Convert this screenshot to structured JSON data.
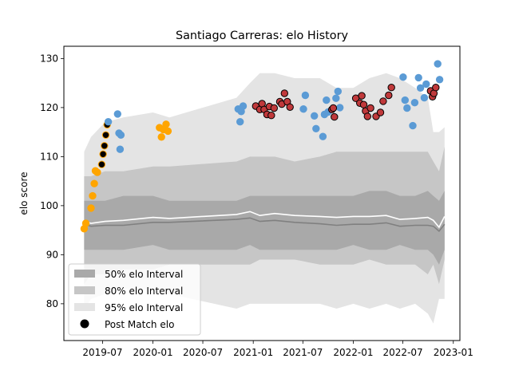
{
  "chart_data": {
    "type": "scatter",
    "title": "Santiago Carreras: elo History",
    "xlabel": "",
    "ylabel": "elo score",
    "xlim": [
      "2019-02-10",
      "2023-01-25"
    ],
    "ylim": [
      72.5,
      132.5
    ],
    "x_ticks": [
      "2019-07-01",
      "2020-01-01",
      "2020-07-01",
      "2021-01-01",
      "2021-07-01",
      "2022-01-01",
      "2022-07-01",
      "2023-01-01"
    ],
    "x_tick_labels": [
      "2019-07",
      "2020-01",
      "2020-07",
      "2021-01",
      "2021-07",
      "2022-01",
      "2022-07",
      "2023-01"
    ],
    "y_ticks": [
      80,
      90,
      100,
      110,
      120,
      130
    ],
    "grid": false,
    "legend": {
      "position": "lower-left",
      "entries": [
        "50% elo Interval",
        "80% elo Interval",
        "95% elo Interval",
        "Post Match elo"
      ]
    },
    "colors": {
      "band50": "#a9a9a9",
      "band80": "#c6c6c6",
      "band95": "#e4e4e4",
      "median": "#808080",
      "mean": "#ffffff",
      "orange": "#ffa500",
      "blue": "#5b9bd5",
      "red": "#c0393b",
      "black": "#000000"
    },
    "bands": {
      "dates": [
        "2019-04-25",
        "2019-05-20",
        "2019-07-10",
        "2019-09-15",
        "2020-01-01",
        "2020-03-01",
        "2020-11-01",
        "2020-12-20",
        "2021-01-25",
        "2021-03-20",
        "2021-06-01",
        "2021-09-01",
        "2021-11-01",
        "2022-01-01",
        "2022-03-01",
        "2022-05-01",
        "2022-06-20",
        "2022-08-15",
        "2022-09-30",
        "2022-10-20",
        "2022-11-10",
        "2022-11-30"
      ],
      "p2_5": [
        79,
        81,
        82,
        83,
        83,
        82,
        79,
        80,
        80,
        80,
        80,
        80,
        79,
        80,
        79,
        80,
        79,
        80,
        78,
        76,
        81,
        81
      ],
      "p10": [
        84,
        86,
        86,
        87,
        87,
        88,
        88,
        88,
        89,
        89,
        89,
        88,
        88,
        88,
        89,
        88,
        88,
        88,
        86,
        88,
        84,
        89
      ],
      "p25": [
        91,
        91,
        91,
        91,
        92,
        91,
        91,
        92,
        91,
        91,
        91,
        91,
        91,
        92,
        91,
        91,
        92,
        91,
        91,
        90,
        88,
        91
      ],
      "p50": [
        96.2,
        95.8,
        96.0,
        96.0,
        96.6,
        96.6,
        97.2,
        97.5,
        96.8,
        97.0,
        96.6,
        96.3,
        96.0,
        96.2,
        96.2,
        96.5,
        95.8,
        96.0,
        96.0,
        95.8,
        94.8,
        96.2
      ],
      "mean": [
        96.8,
        96.4,
        96.8,
        97.0,
        97.6,
        97.4,
        98.2,
        98.8,
        98.0,
        98.4,
        98.0,
        97.8,
        97.6,
        97.8,
        97.8,
        98.0,
        97.2,
        97.4,
        97.6,
        97.0,
        95.6,
        97.8
      ],
      "p75": [
        101,
        101,
        101,
        102,
        102,
        101,
        101,
        102,
        102,
        102,
        102,
        102,
        102,
        102,
        103,
        103,
        102,
        102,
        103,
        102,
        101,
        103
      ],
      "p90": [
        106,
        106,
        107,
        107,
        108,
        108,
        109,
        110,
        110,
        110,
        109,
        110,
        111,
        111,
        111,
        111,
        111,
        111,
        111,
        109,
        107,
        112
      ],
      "p97_5": [
        111,
        114,
        117,
        118,
        119,
        118,
        122,
        125,
        127,
        127,
        126,
        126,
        124,
        124,
        126,
        127,
        126,
        124,
        122,
        115,
        115,
        116
      ]
    },
    "series": [
      {
        "name": "Post Match elo",
        "color": "orange",
        "outline": "orange",
        "points": [
          {
            "x": "2019-04-25",
            "y": 95.3
          },
          {
            "x": "2019-05-01",
            "y": 96.4
          },
          {
            "x": "2019-05-20",
            "y": 99.5
          },
          {
            "x": "2019-05-26",
            "y": 102.0
          },
          {
            "x": "2019-06-01",
            "y": 104.5
          },
          {
            "x": "2019-06-05",
            "y": 107.1
          },
          {
            "x": "2019-06-12",
            "y": 106.8
          },
          {
            "x": "2020-01-25",
            "y": 115.9
          },
          {
            "x": "2020-02-01",
            "y": 114.0
          },
          {
            "x": "2020-02-08",
            "y": 115.5
          },
          {
            "x": "2020-02-18",
            "y": 116.6
          },
          {
            "x": "2020-02-25",
            "y": 115.2
          }
        ]
      },
      {
        "name": "Post Match elo",
        "color": "black",
        "outline": "orange",
        "points": [
          {
            "x": "2019-06-28",
            "y": 108.4
          },
          {
            "x": "2019-07-03",
            "y": 110.5
          },
          {
            "x": "2019-07-08",
            "y": 112.2
          },
          {
            "x": "2019-07-13",
            "y": 114.4
          },
          {
            "x": "2019-07-18",
            "y": 116.5
          }
        ]
      },
      {
        "name": "Post Match elo",
        "color": "blue",
        "outline": "blue",
        "points": [
          {
            "x": "2019-07-22",
            "y": 117.1
          },
          {
            "x": "2019-08-25",
            "y": 118.7
          },
          {
            "x": "2019-08-30",
            "y": 114.8
          },
          {
            "x": "2019-09-03",
            "y": 111.5
          },
          {
            "x": "2019-09-06",
            "y": 114.4
          },
          {
            "x": "2020-11-07",
            "y": 119.7
          },
          {
            "x": "2020-11-14",
            "y": 117.1
          },
          {
            "x": "2020-11-18",
            "y": 119.2
          },
          {
            "x": "2020-11-25",
            "y": 120.3
          },
          {
            "x": "2021-07-03",
            "y": 119.7
          },
          {
            "x": "2021-07-10",
            "y": 122.5
          },
          {
            "x": "2021-08-12",
            "y": 118.3
          },
          {
            "x": "2021-08-18",
            "y": 115.7
          },
          {
            "x": "2021-09-12",
            "y": 114.1
          },
          {
            "x": "2021-09-18",
            "y": 118.6
          },
          {
            "x": "2021-09-25",
            "y": 121.5
          },
          {
            "x": "2021-10-01",
            "y": 119.1
          },
          {
            "x": "2021-10-30",
            "y": 121.9
          },
          {
            "x": "2021-11-06",
            "y": 123.3
          },
          {
            "x": "2021-11-13",
            "y": 120.0
          },
          {
            "x": "2022-07-02",
            "y": 126.2
          },
          {
            "x": "2022-07-09",
            "y": 121.5
          },
          {
            "x": "2022-07-16",
            "y": 119.9
          },
          {
            "x": "2022-08-06",
            "y": 116.3
          },
          {
            "x": "2022-08-13",
            "y": 121.0
          },
          {
            "x": "2022-08-27",
            "y": 126.1
          },
          {
            "x": "2022-09-03",
            "y": 124.0
          },
          {
            "x": "2022-09-17",
            "y": 122.0
          },
          {
            "x": "2022-09-24",
            "y": 124.8
          },
          {
            "x": "2022-11-05",
            "y": 128.9
          },
          {
            "x": "2022-11-12",
            "y": 125.7
          }
        ]
      },
      {
        "name": "Post Match elo",
        "color": "red",
        "outline": "black",
        "points": [
          {
            "x": "2021-01-10",
            "y": 120.3
          },
          {
            "x": "2021-01-25",
            "y": 119.6
          },
          {
            "x": "2021-02-02",
            "y": 120.8
          },
          {
            "x": "2021-02-10",
            "y": 119.6
          },
          {
            "x": "2021-02-20",
            "y": 118.6
          },
          {
            "x": "2021-03-01",
            "y": 120.2
          },
          {
            "x": "2021-03-08",
            "y": 118.4
          },
          {
            "x": "2021-03-18",
            "y": 119.9
          },
          {
            "x": "2021-04-08",
            "y": 121.2
          },
          {
            "x": "2021-04-15",
            "y": 120.7
          },
          {
            "x": "2021-04-25",
            "y": 122.9
          },
          {
            "x": "2021-05-05",
            "y": 121.2
          },
          {
            "x": "2021-05-15",
            "y": 120.1
          },
          {
            "x": "2021-10-15",
            "y": 119.6
          },
          {
            "x": "2021-10-20",
            "y": 119.9
          },
          {
            "x": "2021-10-24",
            "y": 118.1
          },
          {
            "x": "2022-01-10",
            "y": 121.9
          },
          {
            "x": "2022-01-25",
            "y": 120.9
          },
          {
            "x": "2022-02-01",
            "y": 122.4
          },
          {
            "x": "2022-02-08",
            "y": 120.6
          },
          {
            "x": "2022-02-15",
            "y": 119.3
          },
          {
            "x": "2022-02-22",
            "y": 118.2
          },
          {
            "x": "2022-03-05",
            "y": 119.9
          },
          {
            "x": "2022-03-25",
            "y": 118.2
          },
          {
            "x": "2022-04-10",
            "y": 119.0
          },
          {
            "x": "2022-04-20",
            "y": 121.3
          },
          {
            "x": "2022-05-10",
            "y": 122.5
          },
          {
            "x": "2022-05-20",
            "y": 124.1
          },
          {
            "x": "2022-10-10",
            "y": 123.4
          },
          {
            "x": "2022-10-17",
            "y": 122.2
          },
          {
            "x": "2022-10-22",
            "y": 122.9
          },
          {
            "x": "2022-10-29",
            "y": 124.1
          }
        ]
      }
    ]
  }
}
